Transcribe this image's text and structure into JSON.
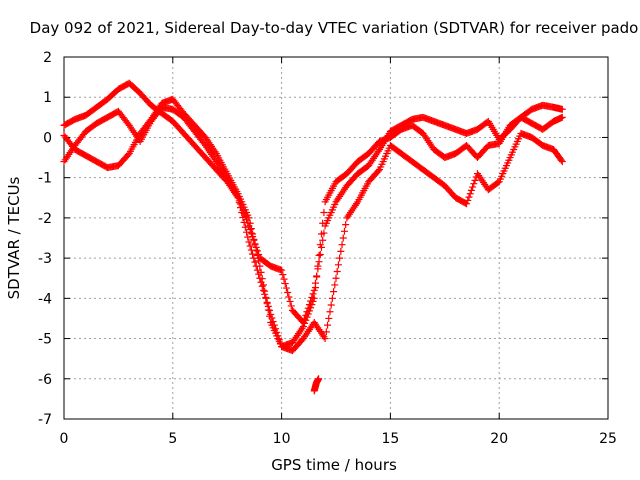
{
  "chart_data": {
    "type": "scatter",
    "title": "Day 092 of 2021, Sidereal Day-to-day VTEC variation (SDTVAR) for receiver pado",
    "xlabel": "GPS time / hours",
    "ylabel": "SDTVAR / TECUs",
    "xlim": [
      0,
      25
    ],
    "ylim": [
      -7,
      2
    ],
    "x_ticks": [
      "0",
      "5",
      "10",
      "15",
      "20",
      "25"
    ],
    "y_ticks": [
      "2",
      "1",
      "0",
      "-1",
      "-2",
      "-3",
      "-4",
      "-5",
      "-6",
      "-7"
    ],
    "grid": true,
    "marker": "+",
    "color": "#ff0000",
    "series": [
      {
        "x": [
          0,
          0.5,
          1,
          1.5,
          2,
          2.5,
          3,
          3.5,
          4,
          4.5,
          5,
          5.5,
          6,
          6.5,
          7,
          7.5,
          8,
          8.5,
          9,
          9.5,
          10,
          10.5,
          11,
          11.5,
          12,
          12.5,
          13,
          13.5,
          14,
          14.5,
          15,
          15.5,
          16,
          16.5,
          17,
          17.5,
          18,
          18.5,
          19,
          19.5,
          20,
          20.5,
          21,
          21.5,
          22,
          22.5,
          22.9
        ],
        "y": [
          0.3,
          0.45,
          0.55,
          0.75,
          0.95,
          1.2,
          1.35,
          1.1,
          0.8,
          0.6,
          0.4,
          0.1,
          -0.2,
          -0.5,
          -0.8,
          -1.1,
          -1.5,
          -2.2,
          -3.0,
          -3.2,
          -3.3,
          -4.3,
          -4.6,
          -3.8,
          -2.2,
          -1.6,
          -1.2,
          -0.9,
          -0.7,
          -0.3,
          0.15,
          0.3,
          0.45,
          0.5,
          0.4,
          0.3,
          0.2,
          0.1,
          0.2,
          0.4,
          -0.05,
          0.2,
          0.5,
          0.7,
          0.8,
          0.75,
          0.7
        ]
      },
      {
        "x": [
          0,
          0.5,
          1,
          1.5,
          2,
          2.5,
          3,
          3.5,
          4,
          4.5,
          5,
          5.5,
          6,
          6.5,
          7,
          7.5,
          8,
          8.5,
          9,
          9.5,
          10,
          10.5,
          11,
          11.5,
          12,
          12.5,
          13,
          13.5,
          14,
          14.5,
          15,
          15.5,
          16,
          16.5,
          17,
          17.5,
          18,
          18.5,
          19,
          19.5,
          20,
          20.5,
          21,
          21.5,
          22,
          22.5,
          22.9
        ],
        "y": [
          -0.6,
          -0.2,
          0.15,
          0.35,
          0.5,
          0.65,
          0.3,
          -0.1,
          0.4,
          0.75,
          0.7,
          0.5,
          0.15,
          -0.2,
          -0.6,
          -1.0,
          -1.5,
          -2.6,
          -3.5,
          -4.4,
          -5.2,
          -5.1,
          -4.7,
          -4.0,
          -1.6,
          -1.1,
          -0.9,
          -0.6,
          -0.4,
          -0.1,
          0.0,
          0.2,
          0.3,
          0.1,
          -0.3,
          -0.5,
          -0.4,
          -0.2,
          -0.5,
          -0.2,
          -0.15,
          0.3,
          0.5,
          0.35,
          0.2,
          0.4,
          0.5
        ]
      },
      {
        "x": [
          0,
          0.5,
          1,
          1.5,
          2,
          2.5,
          3,
          3.5,
          4,
          4.5,
          5,
          5.5,
          6,
          6.5,
          7,
          7.5,
          8,
          8.5,
          9,
          9.5,
          10,
          10.5,
          11,
          11.5,
          12,
          12.5,
          13,
          13.5,
          14,
          14.5,
          15,
          15.5,
          16,
          16.5,
          17,
          17.5,
          18,
          18.5,
          19,
          19.5,
          20,
          20.5,
          21,
          21.5,
          22,
          22.5,
          22.9
        ],
        "y": [
          0.05,
          -0.3,
          -0.45,
          -0.6,
          -0.75,
          -0.7,
          -0.4,
          0.1,
          0.45,
          0.85,
          0.95,
          0.6,
          0.3,
          0.0,
          -0.4,
          -0.9,
          -1.4,
          -2.0,
          -3.2,
          -4.6,
          -5.2,
          -5.3,
          -5.0,
          -4.6,
          -5.0,
          -3.5,
          -2.0,
          -1.6,
          -1.1,
          -0.8,
          -0.2,
          -0.4,
          -0.6,
          -0.8,
          -1.0,
          -1.2,
          -1.5,
          -1.65,
          -0.9,
          -1.3,
          -1.1,
          -0.5,
          0.1,
          0.0,
          -0.2,
          -0.3,
          -0.6
        ]
      },
      {
        "x": [
          11.5,
          11.6,
          11.7
        ],
        "y": [
          -6.3,
          -6.1,
          -6.0
        ]
      }
    ]
  }
}
